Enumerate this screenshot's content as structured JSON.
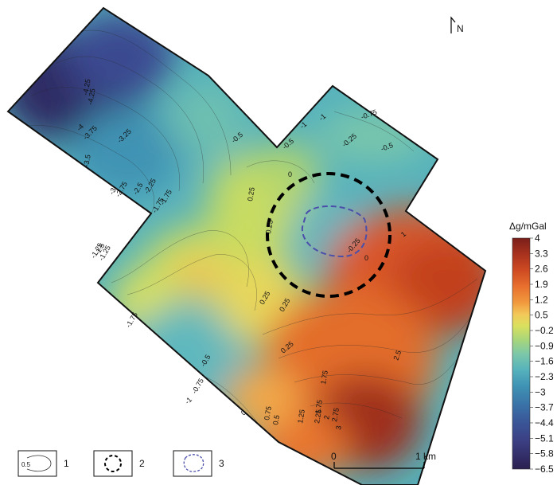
{
  "north": {
    "label": "N"
  },
  "colorbar": {
    "title": "Δg/mGal",
    "ticks": [
      "4",
      "3.3",
      "2.6",
      "1.9",
      "1.2",
      "0.5",
      "−0.2",
      "−0.9",
      "−1.6",
      "−2.3",
      "−3",
      "−3.7",
      "−4.4",
      "−5.1",
      "−5.8",
      "−6.5"
    ],
    "colors": [
      "#7a1f1a",
      "#a8321e",
      "#cf4a22",
      "#e8702e",
      "#f19a3e",
      "#f3c95a",
      "#d9e05e",
      "#a8d67a",
      "#7dc8a8",
      "#56b2bc",
      "#3f93b4",
      "#3a73a8",
      "#3a5597",
      "#3b3f82",
      "#322c66",
      "#2a1f4f"
    ]
  },
  "scale": {
    "start": "0",
    "end": "1 km"
  },
  "legend": [
    {
      "number": "1",
      "sample_label": "0.5"
    },
    {
      "number": "2"
    },
    {
      "number": "3"
    }
  ],
  "contour_labels": [
    "-4.25",
    "-4.25",
    "-4",
    "-3.75",
    "-3.25",
    "-3.5",
    "-3",
    "-2.75",
    "-2.5",
    "-2.25",
    "-1.75",
    "-1.75",
    "-1.25",
    "-0.5",
    "-0.5",
    "-0.25",
    "0",
    "0.25",
    "0.25",
    "-1",
    "-1",
    "-0.75",
    "-0.5",
    "1",
    "-0.25",
    "0",
    "-1.5",
    "-1.25",
    "-1.75",
    "0.25",
    "0.25",
    "-0.5",
    "0.25",
    "2.5",
    "1.75",
    "0.75",
    "1.25",
    "1.75",
    "2",
    "2.25",
    "2.75",
    "3",
    "0.5",
    "0",
    "-1",
    "-0.75"
  ]
}
